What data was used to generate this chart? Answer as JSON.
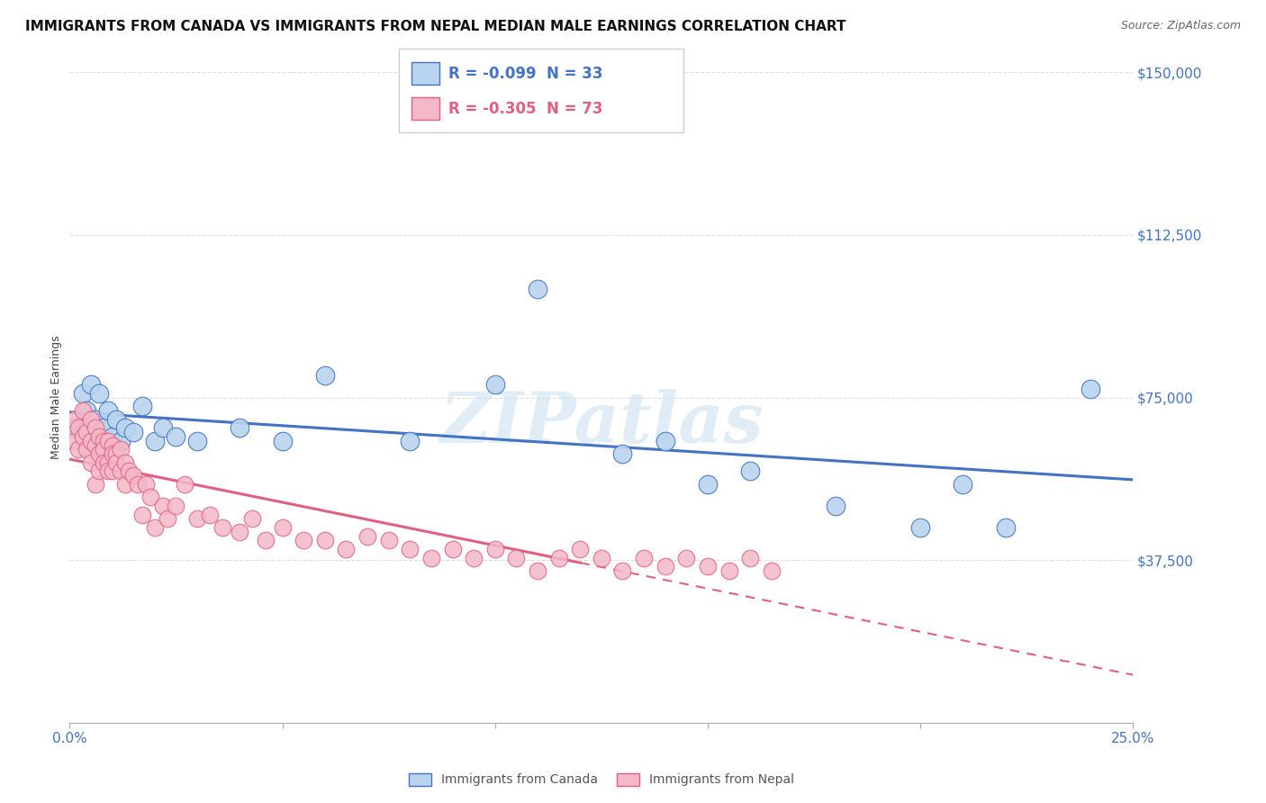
{
  "title": "IMMIGRANTS FROM CANADA VS IMMIGRANTS FROM NEPAL MEDIAN MALE EARNINGS CORRELATION CHART",
  "source": "Source: ZipAtlas.com",
  "ylabel": "Median Male Earnings",
  "watermark": "ZIPatlas",
  "legend_r_canada": "-0.099",
  "legend_n_canada": "33",
  "legend_r_nepal": "-0.305",
  "legend_n_nepal": "73",
  "color_canada_fill": "#b8d4ee",
  "color_canada_edge": "#4472c4",
  "color_nepal_fill": "#f4b8c8",
  "color_nepal_edge": "#e06080",
  "color_trend_canada": "#4472c4",
  "color_trend_nepal": "#e06080",
  "color_ytick": "#4472c4",
  "color_xtick": "#4472c4",
  "xlim": [
    0.0,
    0.25
  ],
  "ylim": [
    0,
    150000
  ],
  "ytick_vals": [
    0,
    37500,
    75000,
    112500,
    150000
  ],
  "ytick_labels": [
    "",
    "$37,500",
    "$75,000",
    "$112,500",
    "$150,000"
  ],
  "canada_x": [
    0.001,
    0.003,
    0.004,
    0.005,
    0.006,
    0.007,
    0.008,
    0.009,
    0.01,
    0.011,
    0.012,
    0.013,
    0.015,
    0.017,
    0.02,
    0.022,
    0.025,
    0.03,
    0.04,
    0.05,
    0.06,
    0.08,
    0.1,
    0.11,
    0.13,
    0.14,
    0.15,
    0.16,
    0.18,
    0.2,
    0.21,
    0.22,
    0.24
  ],
  "canada_y": [
    68000,
    76000,
    72000,
    78000,
    70000,
    76000,
    68000,
    72000,
    66000,
    70000,
    65000,
    68000,
    67000,
    73000,
    65000,
    68000,
    66000,
    65000,
    68000,
    65000,
    80000,
    65000,
    78000,
    100000,
    62000,
    65000,
    55000,
    58000,
    50000,
    45000,
    55000,
    45000,
    77000
  ],
  "nepal_x": [
    0.001,
    0.001,
    0.002,
    0.002,
    0.003,
    0.003,
    0.004,
    0.004,
    0.005,
    0.005,
    0.005,
    0.006,
    0.006,
    0.006,
    0.007,
    0.007,
    0.007,
    0.008,
    0.008,
    0.008,
    0.009,
    0.009,
    0.009,
    0.01,
    0.01,
    0.01,
    0.011,
    0.011,
    0.012,
    0.012,
    0.013,
    0.013,
    0.014,
    0.015,
    0.016,
    0.017,
    0.018,
    0.019,
    0.02,
    0.022,
    0.023,
    0.025,
    0.027,
    0.03,
    0.033,
    0.036,
    0.04,
    0.043,
    0.046,
    0.05,
    0.055,
    0.06,
    0.065,
    0.07,
    0.075,
    0.08,
    0.085,
    0.09,
    0.095,
    0.1,
    0.105,
    0.11,
    0.115,
    0.12,
    0.125,
    0.13,
    0.135,
    0.14,
    0.145,
    0.15,
    0.155,
    0.16,
    0.165
  ],
  "nepal_y": [
    65000,
    70000,
    63000,
    68000,
    72000,
    66000,
    67000,
    63000,
    65000,
    70000,
    60000,
    68000,
    64000,
    55000,
    66000,
    62000,
    58000,
    65000,
    63000,
    60000,
    65000,
    60000,
    58000,
    64000,
    62000,
    58000,
    62000,
    60000,
    63000,
    58000,
    60000,
    55000,
    58000,
    57000,
    55000,
    48000,
    55000,
    52000,
    45000,
    50000,
    47000,
    50000,
    55000,
    47000,
    48000,
    45000,
    44000,
    47000,
    42000,
    45000,
    42000,
    42000,
    40000,
    43000,
    42000,
    40000,
    38000,
    40000,
    38000,
    40000,
    38000,
    35000,
    38000,
    40000,
    38000,
    35000,
    38000,
    36000,
    38000,
    36000,
    35000,
    38000,
    35000
  ],
  "nepal_trend_solid_end": 0.12,
  "title_fontsize": 11,
  "source_fontsize": 9,
  "legend_fontsize": 12,
  "tick_fontsize": 11
}
